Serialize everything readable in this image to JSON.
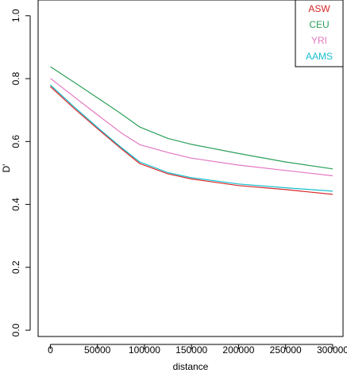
{
  "chart_data": {
    "type": "line",
    "title": "",
    "xlabel": "distance",
    "ylabel": "D'",
    "xlim": [
      -13000,
      311000
    ],
    "ylim": [
      -0.02,
      1.05
    ],
    "x_ticks": [
      0,
      50000,
      100000,
      150000,
      200000,
      250000,
      300000
    ],
    "y_ticks": [
      0.0,
      0.2,
      0.4,
      0.6,
      0.8,
      1.0
    ],
    "x_tick_labels": [
      "0",
      "50000",
      "100000",
      "150000",
      "200000",
      "250000",
      "300000"
    ],
    "y_tick_labels": [
      "0.0",
      "0.2",
      "0.4",
      "0.6",
      "0.8",
      "1.0"
    ],
    "grid": false,
    "legend_position": "top-right",
    "series": [
      {
        "name": "ASW",
        "color": "#d62728",
        "x": [
          0,
          25000,
          50000,
          75000,
          95000,
          125000,
          150000,
          200000,
          250000,
          300000
        ],
        "y": [
          0.775,
          0.706,
          0.641,
          0.578,
          0.53,
          0.497,
          0.481,
          0.46,
          0.447,
          0.432
        ]
      },
      {
        "name": "CEU",
        "color": "#2ca05a",
        "x": [
          0,
          25000,
          50000,
          75000,
          95000,
          125000,
          150000,
          200000,
          250000,
          300000
        ],
        "y": [
          0.838,
          0.789,
          0.739,
          0.689,
          0.646,
          0.61,
          0.591,
          0.562,
          0.535,
          0.513
        ]
      },
      {
        "name": "YRI",
        "color": "#e377c2",
        "x": [
          0,
          25000,
          50000,
          75000,
          95000,
          125000,
          150000,
          200000,
          250000,
          300000
        ],
        "y": [
          0.801,
          0.743,
          0.685,
          0.628,
          0.59,
          0.565,
          0.547,
          0.525,
          0.508,
          0.491
        ]
      },
      {
        "name": "AAMS",
        "color": "#17becf",
        "x": [
          0,
          25000,
          50000,
          75000,
          95000,
          125000,
          150000,
          200000,
          250000,
          300000
        ],
        "y": [
          0.78,
          0.711,
          0.645,
          0.582,
          0.535,
          0.501,
          0.485,
          0.465,
          0.453,
          0.442
        ]
      }
    ]
  }
}
